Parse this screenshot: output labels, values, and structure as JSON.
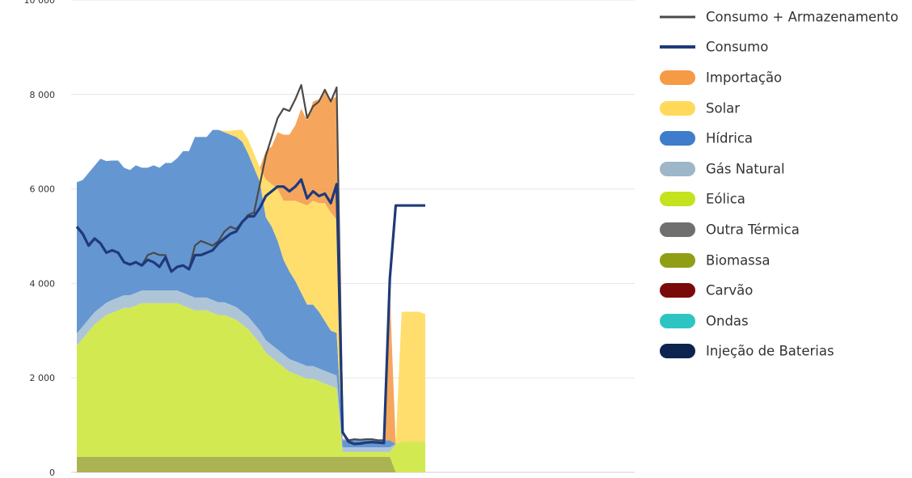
{
  "chart_data": {
    "type": "area",
    "title": "",
    "xlabel": "",
    "ylabel": "",
    "ylim": [
      0,
      10000
    ],
    "y_ticks": [
      {
        "value": 0,
        "label": "0"
      },
      {
        "value": 2000,
        "label": "2 000"
      },
      {
        "value": 4000,
        "label": "4 000"
      },
      {
        "value": 6000,
        "label": "6 000"
      },
      {
        "value": 8000,
        "label": "8 000"
      },
      {
        "value": 10000,
        "label": "10 000"
      }
    ],
    "x_count": 96,
    "grid": true,
    "legend_position": "right",
    "series": [
      {
        "name": "Consumo + Armazenamento",
        "kind": "line",
        "color": "#4a4a4a",
        "values": [
          5200,
          5050,
          4800,
          4950,
          4850,
          4650,
          4700,
          4650,
          4450,
          4400,
          4450,
          4380,
          4600,
          4650,
          4600,
          4600,
          4250,
          4350,
          4380,
          4300,
          4800,
          4900,
          4850,
          4800,
          4900,
          5100,
          5200,
          5150,
          5300,
          5450,
          5500,
          6100,
          6700,
          7100,
          7500,
          7700,
          7650,
          7900,
          8200,
          7500,
          7750,
          7850,
          8100,
          7850,
          8150,
          850,
          680,
          700,
          690,
          700,
          700,
          680,
          680,
          4100,
          5650,
          5650,
          5650,
          5650,
          5650,
          5650
        ]
      },
      {
        "name": "Consumo",
        "kind": "line",
        "color": "#1f3a7a",
        "values": [
          5200,
          5050,
          4800,
          4950,
          4850,
          4650,
          4700,
          4650,
          4450,
          4400,
          4450,
          4380,
          4500,
          4450,
          4350,
          4550,
          4250,
          4350,
          4380,
          4300,
          4600,
          4600,
          4650,
          4700,
          4850,
          4950,
          5050,
          5100,
          5300,
          5420,
          5420,
          5600,
          5850,
          5950,
          6050,
          6050,
          5950,
          6050,
          6200,
          5800,
          5950,
          5850,
          5900,
          5700,
          6100,
          850,
          650,
          600,
          610,
          630,
          640,
          630,
          620,
          4100,
          5650,
          5650,
          5650,
          5650,
          5650,
          5650
        ]
      },
      {
        "name": "Importação",
        "kind": "area",
        "color": "#f59a45",
        "values": [
          0,
          0,
          0,
          0,
          0,
          0,
          0,
          0,
          0,
          0,
          0,
          0,
          0,
          0,
          0,
          0,
          0,
          0,
          0,
          0,
          0,
          0,
          0,
          0,
          0,
          0,
          0,
          0,
          0,
          0,
          0,
          0,
          600,
          800,
          1200,
          1400,
          1400,
          1600,
          2000,
          1800,
          2100,
          2200,
          2400,
          2400,
          2600,
          30,
          0,
          0,
          0,
          0,
          0,
          0,
          0,
          3150,
          0,
          0,
          0,
          0,
          0,
          0
        ]
      },
      {
        "name": "Solar",
        "kind": "area",
        "color": "#ffd95a",
        "values": [
          0,
          0,
          0,
          0,
          0,
          0,
          0,
          0,
          0,
          0,
          0,
          0,
          0,
          0,
          0,
          0,
          0,
          0,
          0,
          0,
          0,
          0,
          0,
          0,
          0,
          30,
          80,
          150,
          250,
          300,
          300,
          300,
          800,
          900,
          1100,
          1250,
          1500,
          1700,
          1900,
          2100,
          2200,
          2300,
          2500,
          2500,
          2400,
          0,
          0,
          0,
          0,
          0,
          0,
          0,
          0,
          0,
          0,
          2750,
          2750,
          2750,
          2750,
          2700
        ]
      },
      {
        "name": "Hídrica",
        "kind": "area",
        "color": "#4f87cc",
        "values": [
          3200,
          3100,
          3100,
          3100,
          3150,
          3000,
          2950,
          2900,
          2700,
          2650,
          2700,
          2600,
          2600,
          2650,
          2600,
          2700,
          2700,
          2800,
          3000,
          3050,
          3400,
          3400,
          3400,
          3600,
          3650,
          3600,
          3600,
          3600,
          3600,
          3450,
          3300,
          3150,
          2600,
          2500,
          2300,
          2000,
          1850,
          1700,
          1500,
          1300,
          1300,
          1200,
          1050,
          900,
          900,
          150,
          150,
          150,
          150,
          150,
          150,
          150,
          150,
          150,
          0,
          0,
          0,
          0,
          0,
          0
        ]
      },
      {
        "name": "Gás Natural",
        "kind": "area",
        "color": "#a3bdd3",
        "values": [
          260,
          260,
          260,
          260,
          260,
          260,
          270,
          270,
          270,
          270,
          270,
          270,
          270,
          270,
          270,
          270,
          270,
          270,
          270,
          270,
          270,
          270,
          270,
          270,
          270,
          270,
          270,
          270,
          270,
          270,
          270,
          270,
          270,
          270,
          270,
          270,
          270,
          270,
          270,
          270,
          270,
          270,
          270,
          270,
          270,
          100,
          100,
          100,
          100,
          100,
          100,
          100,
          100,
          100,
          0,
          0,
          0,
          0,
          0,
          0
        ]
      },
      {
        "name": "Eólica",
        "kind": "area",
        "color": "#cde63a",
        "values": [
          2350,
          2500,
          2650,
          2800,
          2900,
          3000,
          3050,
          3100,
          3150,
          3150,
          3200,
          3250,
          3250,
          3250,
          3250,
          3250,
          3250,
          3250,
          3200,
          3150,
          3100,
          3100,
          3100,
          3050,
          3000,
          3000,
          2950,
          2900,
          2800,
          2700,
          2550,
          2400,
          2200,
          2100,
          2000,
          1900,
          1800,
          1750,
          1700,
          1650,
          1650,
          1600,
          1550,
          1500,
          1450,
          100,
          100,
          100,
          100,
          100,
          100,
          100,
          100,
          100,
          600,
          650,
          650,
          650,
          650,
          650
        ]
      },
      {
        "name": "Outra Térmica",
        "kind": "area",
        "color": "#7a7a7a",
        "values": [
          0,
          0,
          0,
          0,
          0,
          0,
          0,
          0,
          0,
          0,
          0,
          0,
          0,
          0,
          0,
          0,
          0,
          0,
          0,
          0,
          0,
          0,
          0,
          0,
          0,
          0,
          0,
          0,
          0,
          0,
          0,
          0,
          0,
          0,
          0,
          0,
          0,
          0,
          0,
          0,
          0,
          0,
          0,
          0,
          0,
          0,
          0,
          0,
          0,
          0,
          0,
          0,
          0,
          0,
          0,
          0,
          0,
          0,
          0,
          0
        ]
      },
      {
        "name": "Biomassa",
        "kind": "area",
        "color": "#a0a83a",
        "values": [
          330,
          330,
          330,
          330,
          330,
          330,
          330,
          330,
          330,
          330,
          330,
          330,
          330,
          330,
          330,
          330,
          330,
          330,
          330,
          330,
          330,
          330,
          330,
          330,
          330,
          330,
          330,
          330,
          330,
          330,
          330,
          330,
          330,
          330,
          330,
          330,
          330,
          330,
          330,
          330,
          330,
          330,
          330,
          330,
          330,
          330,
          330,
          330,
          330,
          330,
          330,
          330,
          330,
          330,
          0,
          0,
          0,
          0,
          0,
          0
        ]
      },
      {
        "name": "Carvão",
        "kind": "area",
        "color": "#7a0a0a",
        "values": [
          0,
          0,
          0,
          0,
          0,
          0,
          0,
          0,
          0,
          0,
          0,
          0,
          0,
          0,
          0,
          0,
          0,
          0,
          0,
          0,
          0,
          0,
          0,
          0,
          0,
          0,
          0,
          0,
          0,
          0,
          0,
          0,
          0,
          0,
          0,
          0,
          0,
          0,
          0,
          0,
          0,
          0,
          0,
          0,
          0,
          0,
          0,
          0,
          0,
          0,
          0,
          0,
          0,
          0,
          0,
          0,
          0,
          0,
          0,
          0
        ]
      },
      {
        "name": "Ondas",
        "kind": "area",
        "color": "#36c9c9",
        "values": [
          0,
          0,
          0,
          0,
          0,
          0,
          0,
          0,
          0,
          0,
          0,
          0,
          0,
          0,
          0,
          0,
          0,
          0,
          0,
          0,
          0,
          0,
          0,
          0,
          0,
          0,
          0,
          0,
          0,
          0,
          0,
          0,
          0,
          0,
          0,
          0,
          0,
          0,
          0,
          0,
          0,
          0,
          0,
          0,
          0,
          0,
          0,
          0,
          0,
          0,
          0,
          0,
          0,
          0,
          0,
          0,
          0,
          0,
          0,
          0
        ]
      },
      {
        "name": "Injeção de Baterias",
        "kind": "area",
        "color": "#13244f",
        "values": [
          0,
          0,
          0,
          0,
          0,
          0,
          0,
          0,
          0,
          0,
          0,
          0,
          0,
          0,
          0,
          0,
          0,
          0,
          0,
          0,
          0,
          0,
          0,
          0,
          0,
          0,
          0,
          0,
          0,
          0,
          0,
          0,
          0,
          0,
          0,
          0,
          0,
          0,
          0,
          0,
          0,
          0,
          0,
          0,
          0,
          0,
          0,
          0,
          0,
          0,
          0,
          0,
          0,
          0,
          0,
          0,
          0,
          0,
          0,
          0
        ]
      }
    ]
  },
  "legend": {
    "items": [
      {
        "label": "Consumo + Armazenamento",
        "style": "line",
        "color": "#4a4a4a"
      },
      {
        "label": "Consumo",
        "style": "line-thick",
        "color": "#1f3a7a"
      },
      {
        "label": "Importação",
        "style": "pill",
        "color": "#f59a45"
      },
      {
        "label": "Solar",
        "style": "pill",
        "color": "#ffd95a"
      },
      {
        "label": "Hídrica",
        "style": "pill",
        "color": "#3f7ccb"
      },
      {
        "label": "Gás Natural",
        "style": "pill",
        "color": "#9db6c8"
      },
      {
        "label": "Eólica",
        "style": "pill",
        "color": "#c4e21e"
      },
      {
        "label": "Outra Térmica",
        "style": "pill",
        "color": "#6f6f6f"
      },
      {
        "label": "Biomassa",
        "style": "pill",
        "color": "#8f9e15"
      },
      {
        "label": "Carvão",
        "style": "pill",
        "color": "#7a0a0a"
      },
      {
        "label": "Ondas",
        "style": "pill",
        "color": "#2ec4c4"
      },
      {
        "label": "Injeção de Baterias",
        "style": "pill",
        "color": "#0d2350"
      }
    ]
  }
}
